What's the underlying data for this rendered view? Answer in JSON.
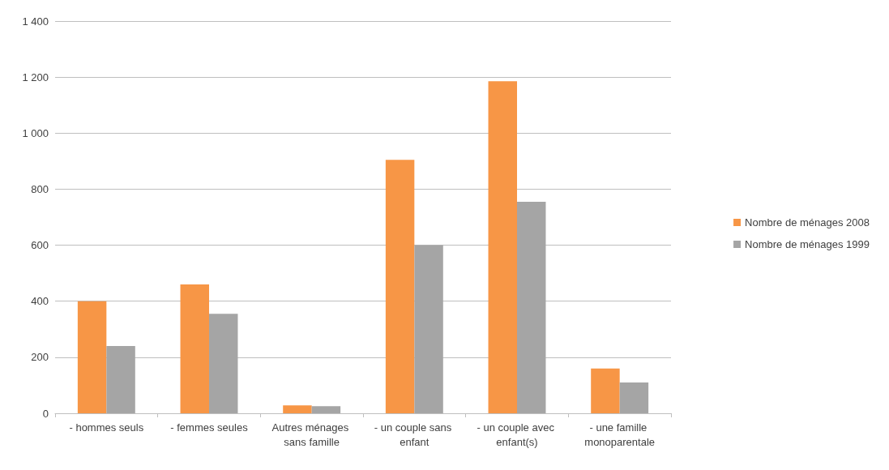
{
  "chart_data": {
    "type": "bar",
    "categories": [
      "- hommes seuls",
      "- femmes seules",
      "Autres ménages sans famille",
      "- un couple sans enfant",
      "- un couple avec enfant(s)",
      "- une famille monoparentale"
    ],
    "series": [
      {
        "name": "Nombre de ménages 2008",
        "color": "#f79646",
        "values": [
          400,
          460,
          28,
          905,
          1185,
          160
        ]
      },
      {
        "name": "Nombre de ménages 1999",
        "color": "#a5a5a5",
        "values": [
          240,
          355,
          25,
          600,
          755,
          110
        ]
      }
    ],
    "ylim": [
      0,
      1400
    ],
    "yticks": [
      0,
      200,
      400,
      600,
      800,
      {
        "value": 1000,
        "label": "1 000"
      },
      {
        "value": 1200,
        "label": "1 200"
      },
      {
        "value": 1400,
        "label": "1 400"
      }
    ],
    "grid": "y",
    "legend": "right"
  }
}
